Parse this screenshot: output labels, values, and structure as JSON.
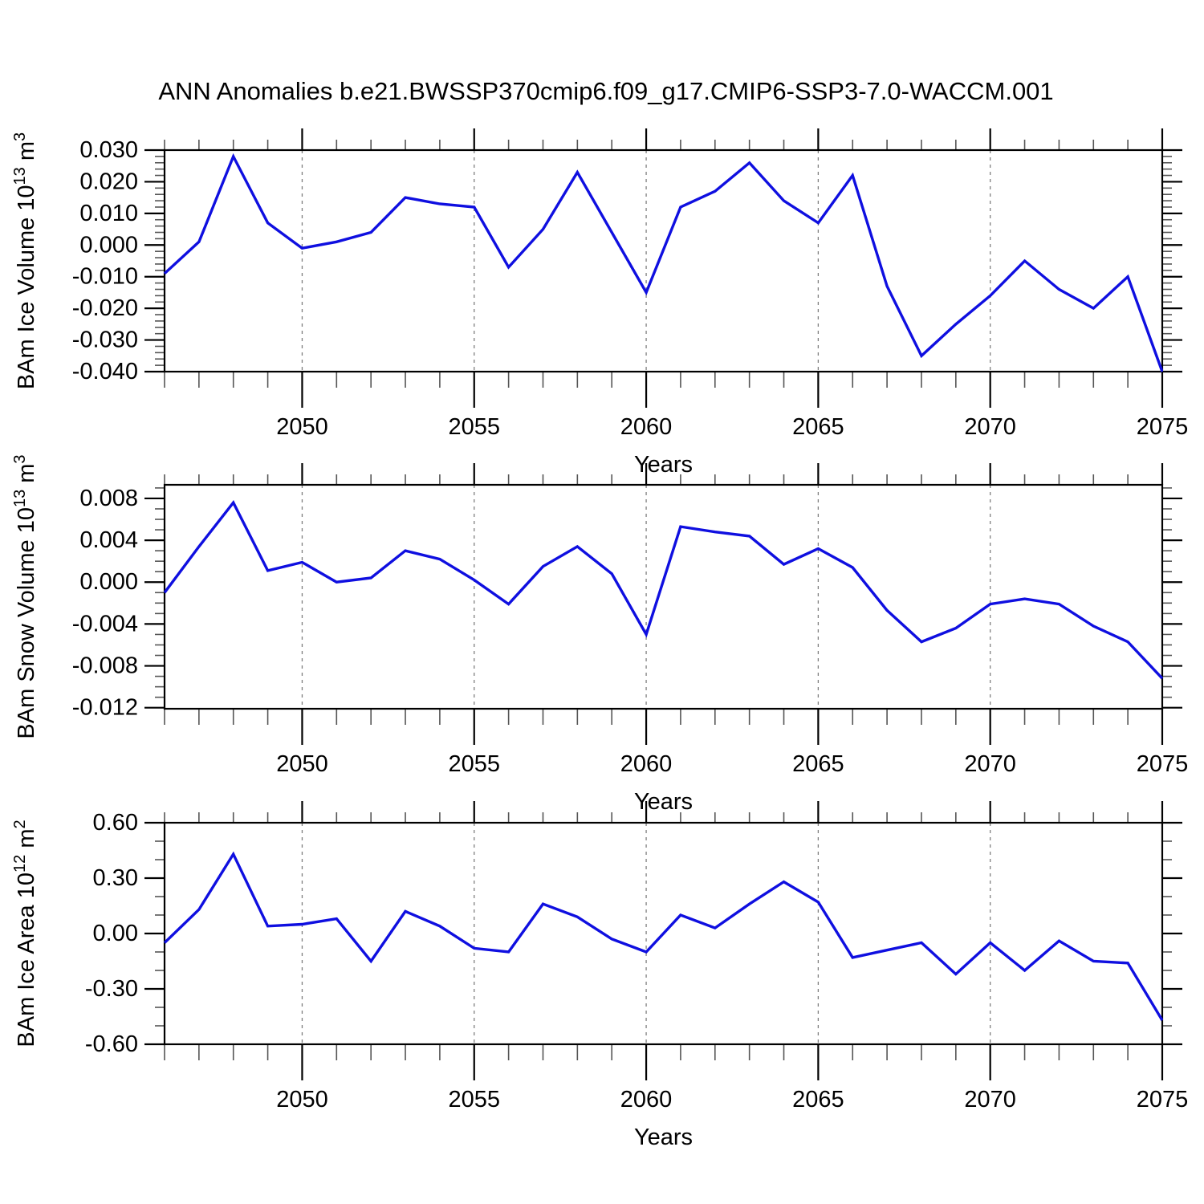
{
  "title": "ANN Anomalies b.e21.BWSSP370cmip6.f09_g17.CMIP6-SSP3-7.0-WACCM.001",
  "line_color": "#0f0fe0",
  "axis_color": "#000000",
  "grid_color": "#7f7f7f",
  "minor_tick_color": "#555555",
  "chart_data": [
    {
      "type": "line",
      "title": "",
      "xlabel": "Years",
      "ylabel": "BAm Ice Volume 10^13 m^3",
      "ylabel_parts": [
        {
          "text": "BAm Ice Volume 10"
        },
        {
          "text": "13",
          "sup": true
        },
        {
          "text": " m"
        },
        {
          "text": "3",
          "sup": true
        }
      ],
      "x": [
        2046,
        2047,
        2048,
        2049,
        2050,
        2051,
        2052,
        2053,
        2054,
        2055,
        2056,
        2057,
        2058,
        2059,
        2060,
        2061,
        2062,
        2063,
        2064,
        2065,
        2066,
        2067,
        2068,
        2069,
        2070,
        2071,
        2072,
        2073,
        2074,
        2075
      ],
      "values": [
        -0.009,
        0.001,
        0.028,
        0.007,
        -0.001,
        0.001,
        0.004,
        0.015,
        0.013,
        0.012,
        -0.007,
        0.005,
        0.023,
        0.004,
        -0.015,
        0.012,
        0.017,
        0.026,
        0.014,
        0.007,
        0.022,
        -0.013,
        -0.035,
        -0.025,
        -0.016,
        -0.005,
        -0.014,
        -0.02,
        -0.01,
        -0.04
      ],
      "ylim": [
        -0.04,
        0.03
      ],
      "yticks": [
        0.03,
        0.02,
        0.01,
        0.0,
        -0.01,
        -0.02,
        -0.03,
        -0.04
      ],
      "ytick_labels": [
        "0.030",
        "0.020",
        "0.010",
        "0.000",
        "-0.010",
        "-0.020",
        "-0.030",
        "-0.040"
      ],
      "yminor_step": 0.002,
      "xticks": [
        2050,
        2055,
        2060,
        2065,
        2070,
        2075
      ],
      "xtick_labels": [
        "2050",
        "2055",
        "2060",
        "2065",
        "2070",
        "2075"
      ],
      "grid_years": [
        2050,
        2055,
        2060,
        2065,
        2070
      ],
      "grid": "vertical-dashed",
      "legend": "none"
    },
    {
      "type": "line",
      "title": "",
      "xlabel": "Years",
      "ylabel": "BAm Snow Volume 10^13 m^3",
      "ylabel_parts": [
        {
          "text": "BAm Snow Volume 10"
        },
        {
          "text": "13",
          "sup": true
        },
        {
          "text": " m"
        },
        {
          "text": "3",
          "sup": true
        }
      ],
      "x": [
        2046,
        2047,
        2048,
        2049,
        2050,
        2051,
        2052,
        2053,
        2054,
        2055,
        2056,
        2057,
        2058,
        2059,
        2060,
        2061,
        2062,
        2063,
        2064,
        2065,
        2066,
        2067,
        2068,
        2069,
        2070,
        2071,
        2072,
        2073,
        2074,
        2075
      ],
      "values": [
        -0.001,
        0.0034,
        0.0076,
        0.0011,
        0.0019,
        0.0,
        0.0004,
        0.003,
        0.0022,
        0.0002,
        -0.0021,
        0.0015,
        0.0034,
        0.0008,
        -0.005,
        0.0053,
        0.0048,
        0.0044,
        0.0017,
        0.0032,
        0.0014,
        -0.0027,
        -0.0057,
        -0.0044,
        -0.0021,
        -0.0016,
        -0.0021,
        -0.0042,
        -0.0057,
        -0.0092
      ],
      "ylim": [
        -0.0121,
        0.0093
      ],
      "yticks": [
        0.008,
        0.004,
        0.0,
        -0.004,
        -0.008,
        -0.012
      ],
      "ytick_labels": [
        "0.008",
        "0.004",
        "0.000",
        "-0.004",
        "-0.008",
        "-0.012"
      ],
      "yminor_step": 0.001,
      "xticks": [
        2050,
        2055,
        2060,
        2065,
        2070,
        2075
      ],
      "xtick_labels": [
        "2050",
        "2055",
        "2060",
        "2065",
        "2070",
        "2075"
      ],
      "grid_years": [
        2050,
        2055,
        2060,
        2065,
        2070
      ],
      "grid": "vertical-dashed",
      "legend": "none"
    },
    {
      "type": "line",
      "title": "",
      "xlabel": "Years",
      "ylabel": "BAm Ice Area 10^12 m^2",
      "ylabel_parts": [
        {
          "text": "BAm Ice Area 10"
        },
        {
          "text": "12",
          "sup": true
        },
        {
          "text": " m"
        },
        {
          "text": "2",
          "sup": true
        }
      ],
      "x": [
        2046,
        2047,
        2048,
        2049,
        2050,
        2051,
        2052,
        2053,
        2054,
        2055,
        2056,
        2057,
        2058,
        2059,
        2060,
        2061,
        2062,
        2063,
        2064,
        2065,
        2066,
        2067,
        2068,
        2069,
        2070,
        2071,
        2072,
        2073,
        2074,
        2075
      ],
      "values": [
        -0.05,
        0.13,
        0.43,
        0.04,
        0.05,
        0.08,
        -0.15,
        0.12,
        0.04,
        -0.08,
        -0.1,
        0.16,
        0.09,
        -0.03,
        -0.1,
        0.1,
        0.03,
        0.16,
        0.28,
        0.17,
        -0.13,
        -0.09,
        -0.05,
        -0.22,
        -0.05,
        -0.2,
        -0.04,
        -0.15,
        -0.16,
        -0.47
      ],
      "ylim": [
        -0.6,
        0.6
      ],
      "yticks": [
        0.6,
        0.3,
        0.0,
        -0.3,
        -0.6
      ],
      "ytick_labels": [
        "0.60",
        "0.30",
        "0.00",
        "-0.30",
        "-0.60"
      ],
      "yminor_step": 0.1,
      "xticks": [
        2050,
        2055,
        2060,
        2065,
        2070,
        2075
      ],
      "xtick_labels": [
        "2050",
        "2055",
        "2060",
        "2065",
        "2070",
        "2075"
      ],
      "grid_years": [
        2050,
        2055,
        2060,
        2065,
        2070
      ],
      "grid": "vertical-dashed",
      "legend": "none"
    }
  ]
}
